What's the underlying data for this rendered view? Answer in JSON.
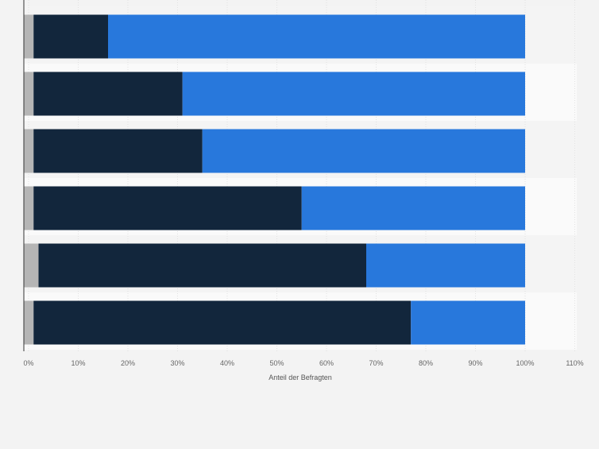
{
  "chart_data": {
    "type": "bar",
    "orientation": "horizontal",
    "stacked": true,
    "categories": [
      "",
      "",
      "",
      "",
      "",
      ""
    ],
    "series": [
      {
        "color": "#b5b5b5",
        "values": [
          1,
          1,
          1,
          1,
          2,
          1
        ]
      },
      {
        "color": "#12263c",
        "values": [
          15,
          30,
          34,
          54,
          66,
          76
        ]
      },
      {
        "color": "#2878dc",
        "values": [
          84,
          69,
          65,
          45,
          32,
          23
        ]
      }
    ],
    "xlabel": "Anteil der Befragten",
    "xlim": [
      0,
      110
    ],
    "xticks": [
      0,
      10,
      20,
      30,
      40,
      50,
      60,
      70,
      80,
      90,
      100,
      110
    ],
    "xtick_labels": [
      "0%",
      "10%",
      "20%",
      "30%",
      "40%",
      "50%",
      "60%",
      "70%",
      "80%",
      "90%",
      "100%",
      "110%"
    ],
    "grid": true,
    "legend": "none"
  }
}
